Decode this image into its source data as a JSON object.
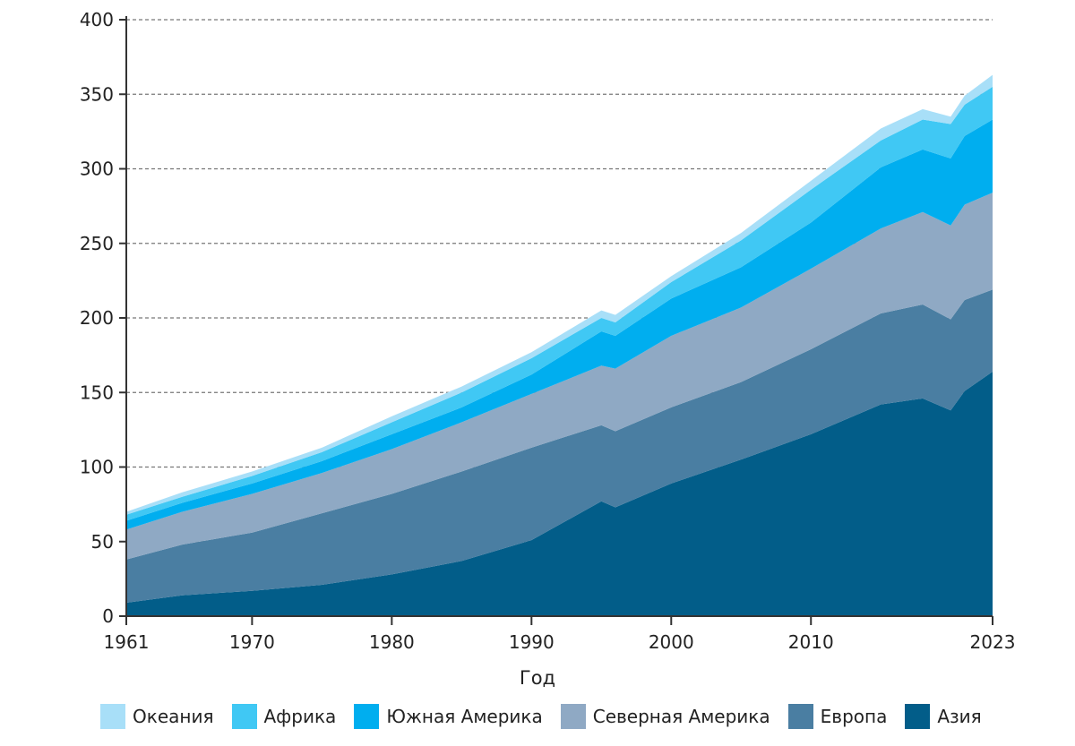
{
  "chart_data": {
    "type": "area",
    "stacked": true,
    "title": "",
    "xlabel": "Год",
    "ylabel": "",
    "xlim": [
      1961,
      2023
    ],
    "ylim": [
      0,
      400
    ],
    "grid": "horizontal-dashed",
    "legend_position": "bottom",
    "x_ticks": [
      1961,
      1970,
      1980,
      1990,
      2000,
      2010,
      2023
    ],
    "y_ticks": [
      0,
      50,
      100,
      150,
      200,
      250,
      300,
      350,
      400
    ],
    "x": [
      1961,
      1965,
      1970,
      1975,
      1980,
      1985,
      1990,
      1995,
      1996,
      2000,
      2005,
      2010,
      2015,
      2018,
      2020,
      2021,
      2023
    ],
    "series": [
      {
        "name": "Азия",
        "color": "#025d89",
        "values": [
          9,
          14,
          17,
          21,
          28,
          37,
          51,
          77,
          73,
          89,
          105,
          122,
          142,
          146,
          138,
          151,
          164
        ]
      },
      {
        "name": "Европа",
        "color": "#4a7ea2",
        "values": [
          29,
          34,
          39,
          48,
          54,
          60,
          62,
          51,
          51,
          51,
          52,
          57,
          61,
          63,
          61,
          61,
          55
        ]
      },
      {
        "name": "Северная Америка",
        "color": "#8fa9c4",
        "values": [
          20,
          22,
          26,
          27,
          30,
          33,
          36,
          40,
          42,
          48,
          50,
          54,
          57,
          62,
          63,
          64,
          65
        ]
      },
      {
        "name": "Южная Америка",
        "color": "#00aeef",
        "values": [
          6,
          6,
          7,
          8,
          10,
          10,
          13,
          23,
          22,
          25,
          27,
          31,
          41,
          42,
          45,
          46,
          49
        ]
      },
      {
        "name": "Африка",
        "color": "#40c8f4",
        "values": [
          4,
          4,
          5,
          6,
          8,
          10,
          11,
          9,
          9,
          11,
          18,
          22,
          18,
          20,
          23,
          21,
          22
        ]
      },
      {
        "name": "Океания",
        "color": "#a8dff8",
        "values": [
          2,
          3,
          3,
          3,
          4,
          4,
          4,
          5,
          5,
          4,
          5,
          6,
          8,
          7,
          5,
          6,
          8
        ]
      }
    ],
    "legend_order": [
      "Океания",
      "Африка",
      "Южная Америка",
      "Северная Америка",
      "Европа",
      "Азия"
    ]
  }
}
